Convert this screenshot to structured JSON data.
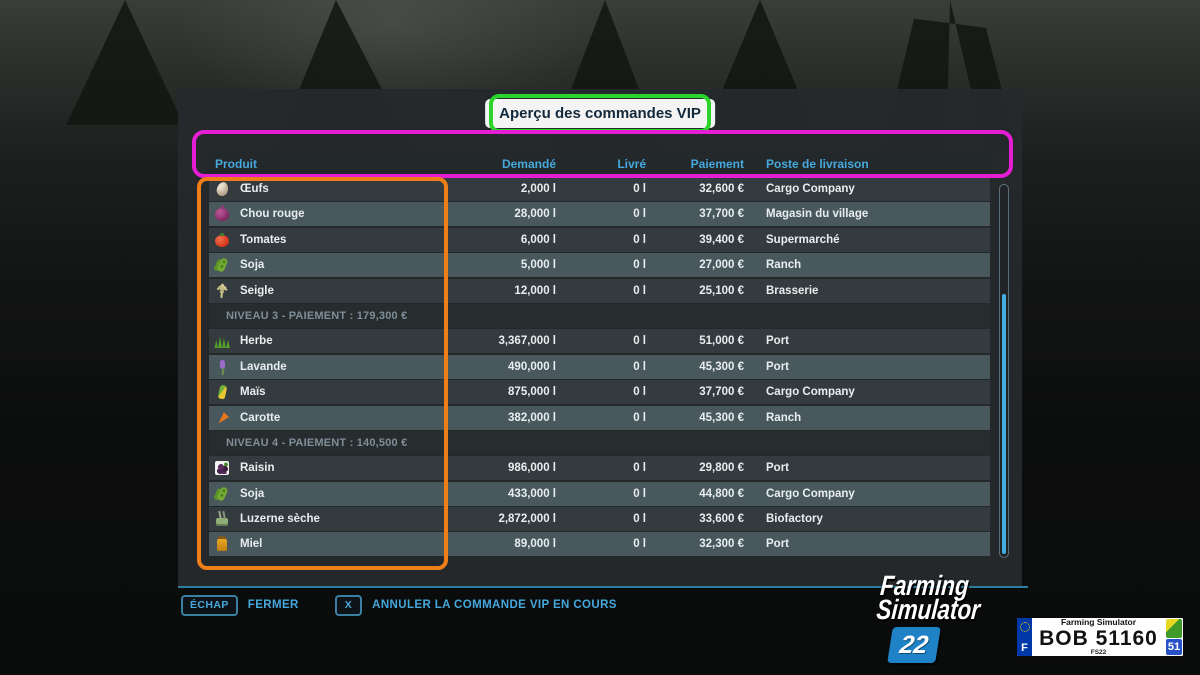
{
  "title": "Aperçu des commandes VIP",
  "table": {
    "columns": {
      "product": "Produit",
      "demanded": "Demandé",
      "delivered": "Livré",
      "payment": "Paiement",
      "station": "Poste de livraison"
    },
    "rows": [
      {
        "type": "item",
        "icon": "egg-icon",
        "product": "Œufs",
        "demanded": "2,000 l",
        "delivered": "0 l",
        "payment": "32,600 €",
        "station": "Cargo Company"
      },
      {
        "type": "item",
        "icon": "red-cabbage-icon",
        "product": "Chou rouge",
        "demanded": "28,000 l",
        "delivered": "0 l",
        "payment": "37,700 €",
        "station": "Magasin du village"
      },
      {
        "type": "item",
        "icon": "tomato-icon",
        "product": "Tomates",
        "demanded": "6,000 l",
        "delivered": "0 l",
        "payment": "39,400 €",
        "station": "Supermarché"
      },
      {
        "type": "item",
        "icon": "soybean-icon",
        "product": "Soja",
        "demanded": "5,000 l",
        "delivered": "0 l",
        "payment": "27,000 €",
        "station": "Ranch"
      },
      {
        "type": "item",
        "icon": "rye-icon",
        "product": "Seigle",
        "demanded": "12,000 l",
        "delivered": "0 l",
        "payment": "25,100 €",
        "station": "Brasserie"
      },
      {
        "type": "section",
        "label": "NIVEAU 3 - PAIEMENT : 179,300 €"
      },
      {
        "type": "item",
        "icon": "grass-icon",
        "product": "Herbe",
        "demanded": "3,367,000 l",
        "delivered": "0 l",
        "payment": "51,000 €",
        "station": "Port"
      },
      {
        "type": "item",
        "icon": "lavender-icon",
        "product": "Lavande",
        "demanded": "490,000 l",
        "delivered": "0 l",
        "payment": "45,300 €",
        "station": "Port"
      },
      {
        "type": "item",
        "icon": "corn-icon",
        "product": "Maïs",
        "demanded": "875,000 l",
        "delivered": "0 l",
        "payment": "37,700 €",
        "station": "Cargo Company"
      },
      {
        "type": "item",
        "icon": "carrot-icon",
        "product": "Carotte",
        "demanded": "382,000 l",
        "delivered": "0 l",
        "payment": "45,300 €",
        "station": "Ranch"
      },
      {
        "type": "section",
        "label": "NIVEAU 4 - PAIEMENT : 140,500 €"
      },
      {
        "type": "item",
        "icon": "grapes-icon",
        "product": "Raisin",
        "demanded": "986,000 l",
        "delivered": "0 l",
        "payment": "29,800 €",
        "station": "Port"
      },
      {
        "type": "item",
        "icon": "soybean-icon",
        "product": "Soja",
        "demanded": "433,000 l",
        "delivered": "0 l",
        "payment": "44,800 €",
        "station": "Cargo Company"
      },
      {
        "type": "item",
        "icon": "alfalfa-icon",
        "product": "Luzerne sèche",
        "demanded": "2,872,000 l",
        "delivered": "0 l",
        "payment": "33,600 €",
        "station": "Biofactory"
      },
      {
        "type": "item",
        "icon": "honey-icon",
        "product": "Miel",
        "demanded": "89,000 l",
        "delivered": "0 l",
        "payment": "32,300 €",
        "station": "Port"
      }
    ]
  },
  "footer": {
    "close_key": "ÉCHAP",
    "close_label": "FERMER",
    "cancel_key": "X",
    "cancel_label": "ANNULER LA COMMANDE VIP EN COURS"
  },
  "branding": {
    "logo_line1": "Farming",
    "logo_line2": "Simulator",
    "logo_badge": "22",
    "plate": {
      "country": "F",
      "header": "Farming Simulator",
      "number": "BOB 51160",
      "sub": "FS22",
      "dept": "51"
    }
  },
  "colors": {
    "accent_cyan": "#46a8dc",
    "row_dark": "#343b3e",
    "row_light": "#49585d",
    "annotation_green": "#2ad42a",
    "annotation_magenta": "#e51ed6",
    "annotation_orange": "#ee7e17",
    "scroll_thumb": "#42aee0",
    "divider_teal": "#2d7e9f",
    "badge_blue": "#1f82c6",
    "plate_blue": "#0038a8"
  }
}
